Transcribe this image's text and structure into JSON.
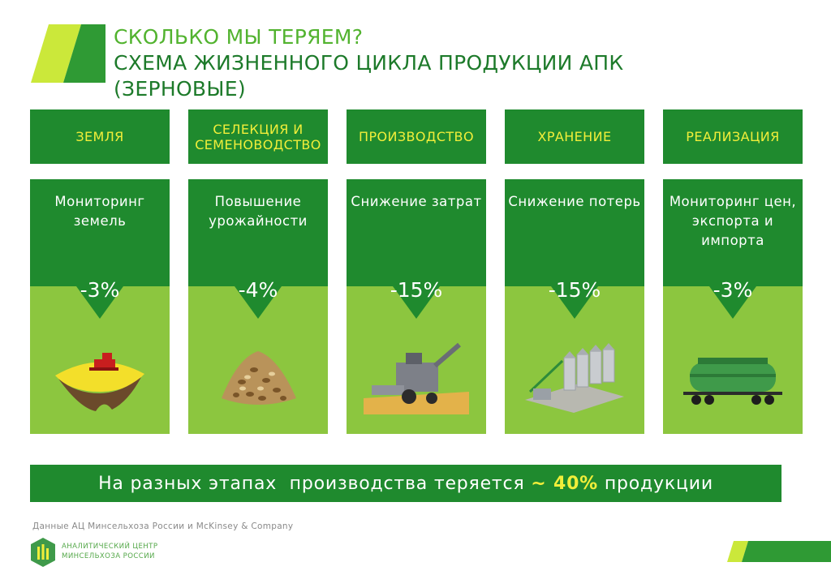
{
  "header": {
    "line1": "СКОЛЬКО МЫ ТЕРЯЕМ?",
    "line2": "СХЕМА ЖИЗНЕННОГО ЦИКЛА ПРОДУКЦИИ АПК",
    "line3": "(ЗЕРНОВЫЕ)"
  },
  "stages": [
    {
      "title": "ЗЕМЛЯ",
      "description": "Мониторинг земель",
      "loss": "-3%",
      "image": "harvester-on-field-image"
    },
    {
      "title": "СЕЛЕКЦИЯ И СЕМЕНОВОДСТВО",
      "description": "Повышение урожайности",
      "loss": "-4%",
      "image": "grain-seeds-image"
    },
    {
      "title": "ПРОИЗВОДСТВО",
      "description": "Снижение затрат",
      "loss": "-15%",
      "image": "combine-harvester-image"
    },
    {
      "title": "ХРАНЕНИЕ",
      "description": "Снижение потерь",
      "loss": "-15%",
      "image": "grain-silos-image"
    },
    {
      "title": "РЕАЛИЗАЦИЯ",
      "description": "Мониторинг цен, экспорта и импорта",
      "loss": "-3%",
      "image": "hopper-railcar-image"
    }
  ],
  "summary": {
    "before": "На разных этапах  производства теряется ",
    "highlight": "~ 40%",
    "after": " продукции"
  },
  "source": "Данные АЦ Минсельхоза России и McKinsey & Company",
  "organization": {
    "line1": "АНАЛИТИЧЕСКИЙ ЦЕНТР",
    "line2": "МИНСЕЛЬХОЗА РОССИИ"
  },
  "colors": {
    "dark_green": "#1f8a2e",
    "light_green": "#8cc63f",
    "yellow": "#f1ee3a",
    "title_green": "#1d7a2a"
  }
}
